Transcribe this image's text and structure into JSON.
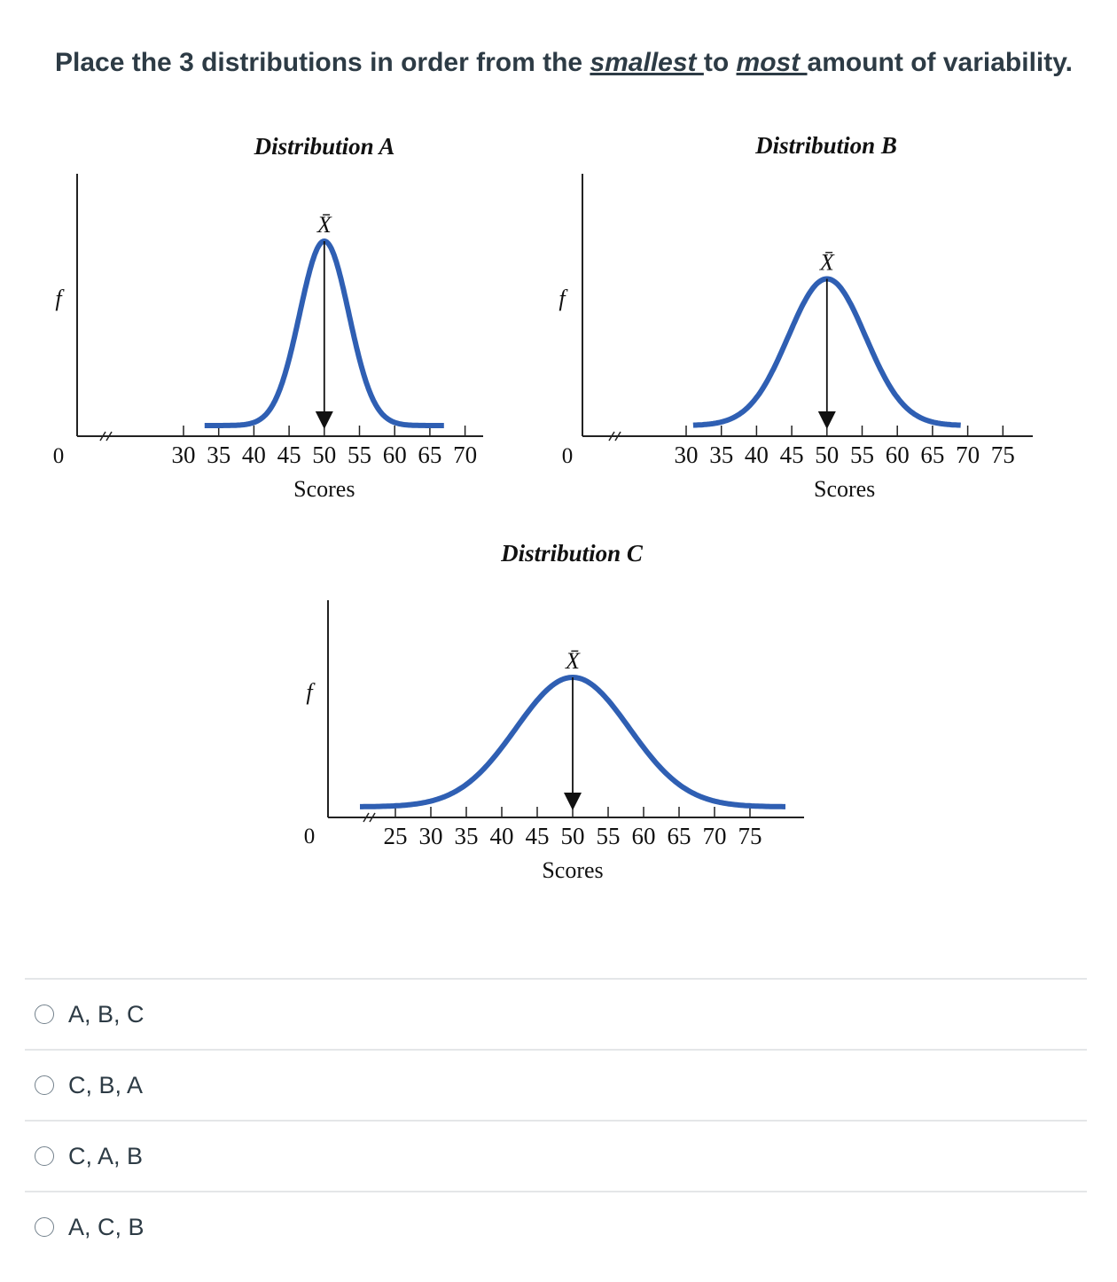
{
  "question": {
    "pre": "Place the 3 distributions in order from the ",
    "word1": "smallest ",
    "mid": "to ",
    "word2": "most ",
    "post": "amount of variability."
  },
  "chart_data": [
    {
      "type": "line",
      "title": "Distribution A",
      "xlabel": "Scores",
      "ylabel": "f",
      "y_origin_label": "0",
      "mean_label": "X̄",
      "x_ticks": [
        30,
        35,
        40,
        45,
        50,
        55,
        60,
        65,
        70
      ],
      "tick_labels": [
        "30",
        "35",
        "40",
        "45",
        "50",
        "55",
        "60",
        "65",
        "70"
      ],
      "mean": 50,
      "sd": 3.5,
      "curve_x_range": [
        33,
        67
      ],
      "peak_height": 0.88,
      "color": "#2f5fb3"
    },
    {
      "type": "line",
      "title": "Distribution B",
      "xlabel": "Scores",
      "ylabel": "f",
      "y_origin_label": "0",
      "mean_label": "X̄",
      "x_ticks": [
        30,
        35,
        40,
        45,
        50,
        55,
        60,
        65,
        70,
        75
      ],
      "tick_labels": [
        "30",
        "35",
        "40",
        "45",
        "50",
        "55",
        "60",
        "65",
        "70",
        "75"
      ],
      "mean": 50,
      "sd": 5.5,
      "curve_x_range": [
        31,
        69
      ],
      "peak_height": 0.7,
      "color": "#2f5fb3"
    },
    {
      "type": "line",
      "title": "Distribution C",
      "xlabel": "Scores",
      "ylabel": "f",
      "y_origin_label": "0",
      "mean_label": "X̄",
      "x_ticks": [
        25,
        30,
        35,
        40,
        45,
        50,
        55,
        60,
        65,
        70,
        75
      ],
      "tick_labels": [
        "25",
        "30",
        "35",
        "40",
        "45",
        "50",
        "55",
        "60",
        "65",
        "70",
        "75"
      ],
      "mean": 50,
      "sd": 8,
      "curve_x_range": [
        20,
        80
      ],
      "peak_height": 0.6,
      "color": "#2f5fb3"
    }
  ],
  "answers": [
    {
      "label": "A, B, C"
    },
    {
      "label": "C, B, A"
    },
    {
      "label": "C, A, B"
    },
    {
      "label": "A, C, B"
    }
  ]
}
